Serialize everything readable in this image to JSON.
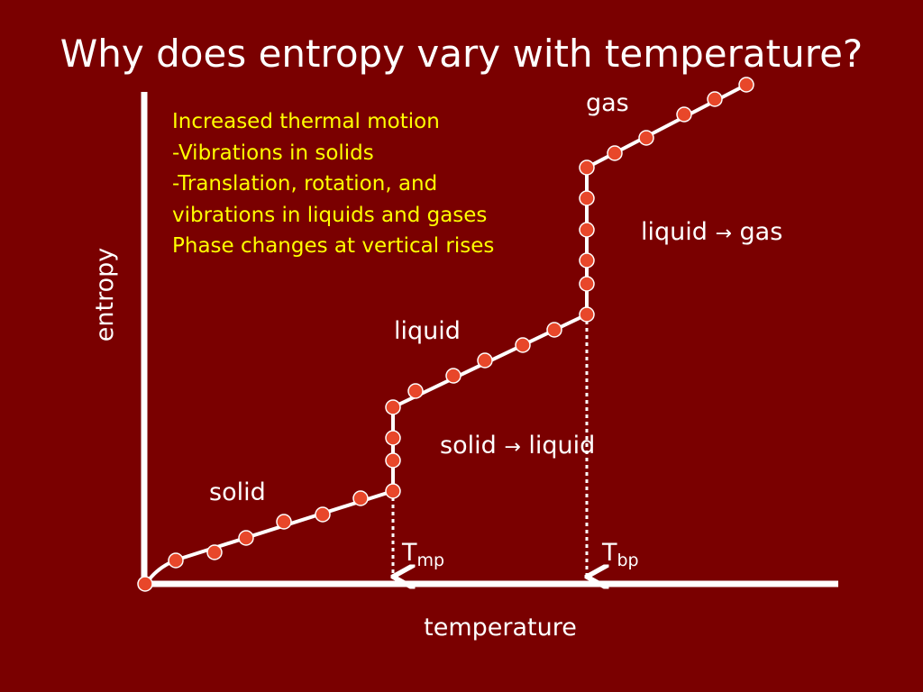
{
  "title": "Why does entropy vary with temperature?",
  "notes": [
    "Increased thermal motion",
    "-Vibrations in solids",
    "-Translation, rotation, and",
    "vibrations in liquids and gases",
    "Phase changes at vertical rises"
  ],
  "axes": {
    "x_label": "temperature",
    "y_label": "entropy"
  },
  "phase_labels": {
    "solid": "solid",
    "liquid": "liquid",
    "gas": "gas"
  },
  "transition_labels": {
    "solid_liquid": {
      "from": "solid",
      "to": "liquid",
      "arrow": "→"
    },
    "liquid_gas": {
      "from": "liquid",
      "to": "gas",
      "arrow": "→"
    }
  },
  "markers": {
    "mp": {
      "symbol": "T",
      "sub": "mp"
    },
    "bp": {
      "symbol": "T",
      "sub": "bp"
    }
  },
  "colors": {
    "background": "#7a0000",
    "notes": "#ffff00",
    "lines": "#ffffff",
    "points": "#e8472a"
  }
}
